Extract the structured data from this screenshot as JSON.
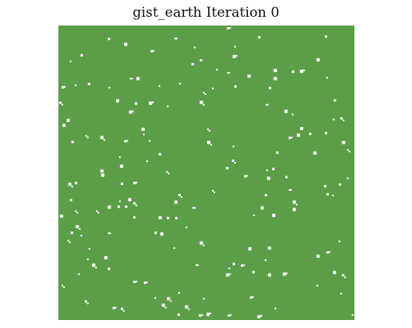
{
  "figure": {
    "title": "gist_earth Iteration 0",
    "colormap": "gist_earth",
    "colors": {
      "live": "#5c9d48",
      "dead": "#ffffff"
    },
    "grid": {
      "rows": 36,
      "cols": 36,
      "live_state": "dominant",
      "note_pattern": "sparse dead cells scattered across grid"
    }
  }
}
